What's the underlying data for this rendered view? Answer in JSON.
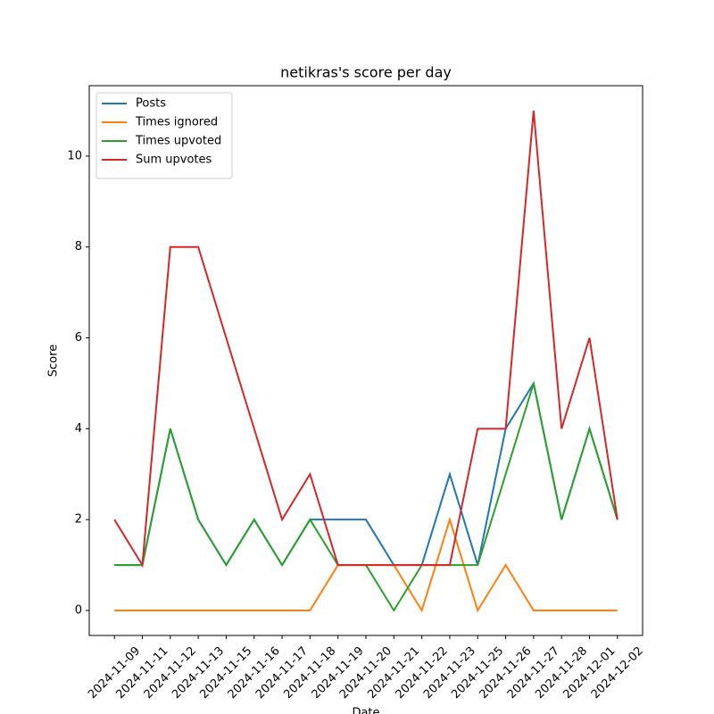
{
  "chart_data": {
    "type": "line",
    "title": "netikras's score per day",
    "x_label": "Date",
    "y_label": "Score",
    "categories": [
      "2024-11-09",
      "2024-11-11",
      "2024-11-12",
      "2024-11-13",
      "2024-11-15",
      "2024-11-16",
      "2024-11-17",
      "2024-11-18",
      "2024-11-19",
      "2024-11-20",
      "2024-11-21",
      "2024-11-22",
      "2024-11-23",
      "2024-11-25",
      "2024-11-26",
      "2024-11-27",
      "2024-11-28",
      "2024-12-01",
      "2024-12-02"
    ],
    "series": [
      {
        "name": "Posts",
        "color": "#1f77b4",
        "values": [
          1,
          1,
          4,
          2,
          1,
          2,
          1,
          2,
          2,
          2,
          1,
          1,
          3,
          1,
          4,
          5,
          2,
          4,
          2
        ]
      },
      {
        "name": "Times ignored",
        "color": "#ff7f0e",
        "values": [
          0,
          0,
          0,
          0,
          0,
          0,
          0,
          0,
          1,
          1,
          1,
          0,
          2,
          0,
          1,
          0,
          0,
          0,
          0
        ]
      },
      {
        "name": "Times upvoted",
        "color": "#2ca02c",
        "values": [
          1,
          1,
          4,
          2,
          1,
          2,
          1,
          2,
          1,
          1,
          0,
          1,
          1,
          1,
          3,
          5,
          2,
          4,
          2
        ]
      },
      {
        "name": "Sum upvotes",
        "color": "#d62728",
        "values": [
          2,
          1,
          8,
          8,
          6,
          4,
          2,
          3,
          1,
          1,
          1,
          1,
          1,
          4,
          4,
          11,
          4,
          6,
          2
        ]
      }
    ],
    "ylim": [
      -0.55,
      11.55
    ],
    "yticks": [
      0,
      2,
      4,
      6,
      8,
      10
    ],
    "legend": "upper left",
    "grid": false
  }
}
